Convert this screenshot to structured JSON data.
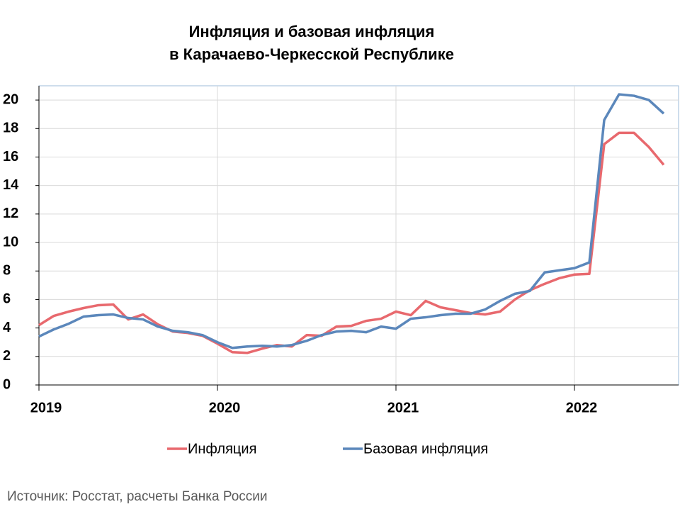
{
  "chart_data": {
    "type": "line",
    "title": [
      "Инфляция и базовая инфляция",
      "в Карачаево-Черкесской Республике"
    ],
    "source": "Источник: Росстат, расчеты Банка России",
    "categories": [
      "2019",
      null,
      null,
      null,
      null,
      null,
      null,
      null,
      null,
      null,
      null,
      null,
      "2020",
      null,
      null,
      null,
      null,
      null,
      null,
      null,
      null,
      null,
      null,
      null,
      "2021",
      null,
      null,
      null,
      null,
      null,
      null,
      null,
      null,
      null,
      null,
      null,
      "2022",
      null,
      null,
      null,
      null,
      null,
      null
    ],
    "series": [
      {
        "name": "Инфляция",
        "color": "#e8696e",
        "values": [
          4.2,
          4.85,
          5.15,
          5.4,
          5.6,
          5.65,
          4.6,
          4.95,
          4.25,
          3.75,
          3.65,
          3.45,
          2.9,
          2.3,
          2.25,
          2.55,
          2.8,
          2.7,
          3.5,
          3.45,
          4.1,
          4.15,
          4.5,
          4.65,
          5.15,
          4.9,
          5.9,
          5.45,
          5.25,
          5.05,
          4.95,
          5.15,
          6.0,
          6.65,
          7.1,
          7.5,
          7.75,
          7.8,
          16.9,
          17.7,
          17.7,
          16.7,
          15.45
        ]
      },
      {
        "name": "Базовая инфляция",
        "color": "#5b87bb",
        "values": [
          3.4,
          3.9,
          4.3,
          4.8,
          4.9,
          4.95,
          4.7,
          4.6,
          4.1,
          3.8,
          3.7,
          3.5,
          3.0,
          2.6,
          2.7,
          2.75,
          2.7,
          2.8,
          3.1,
          3.5,
          3.75,
          3.8,
          3.7,
          4.1,
          3.95,
          4.65,
          4.75,
          4.9,
          5.0,
          5.0,
          5.3,
          5.9,
          6.4,
          6.6,
          7.9,
          8.05,
          8.2,
          8.6,
          18.6,
          20.4,
          20.3,
          20.0,
          19.05
        ]
      }
    ],
    "ylim": [
      0,
      21
    ],
    "yticks": [
      0,
      2,
      4,
      6,
      8,
      10,
      12,
      14,
      16,
      18,
      20
    ],
    "grid": true,
    "legend": "bottom"
  }
}
